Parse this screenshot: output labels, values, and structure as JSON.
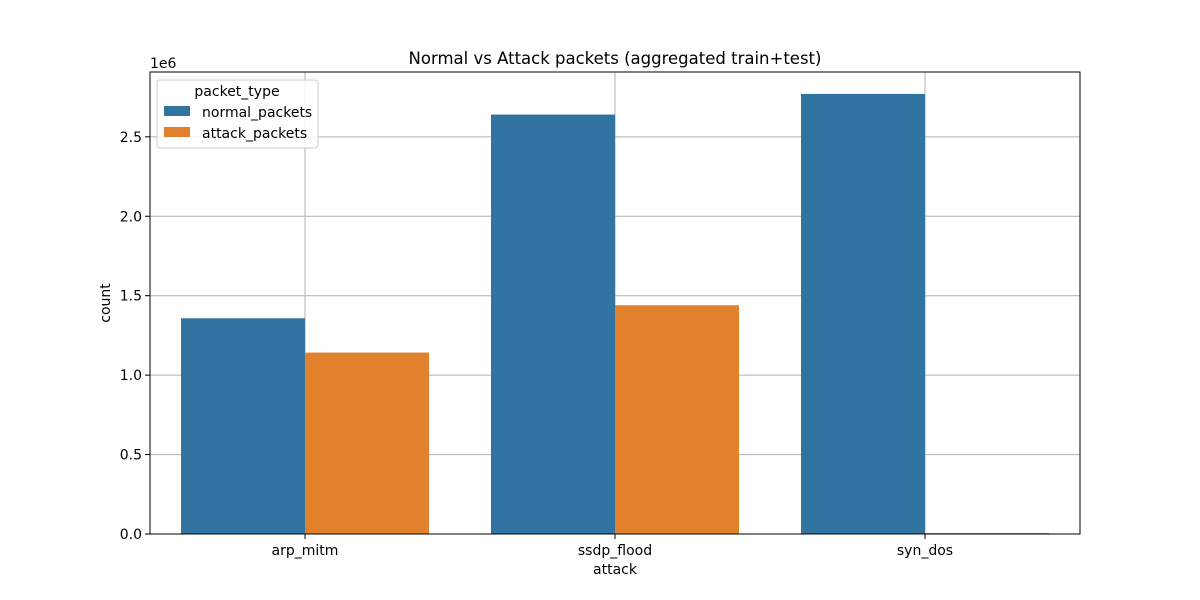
{
  "chart_data": {
    "type": "bar",
    "title": "Normal vs Attack packets (aggregated train+test)",
    "xlabel": "attack",
    "ylabel": "count",
    "y_offset_label": "1e6",
    "categories": [
      "arp_mitm",
      "ssdp_flood",
      "syn_dos"
    ],
    "series": [
      {
        "name": "normal_packets",
        "color": "#3274a1",
        "values": [
          1358000,
          2640000,
          2770000
        ]
      },
      {
        "name": "attack_packets",
        "color": "#e1812c",
        "values": [
          1142000,
          1440000,
          6000
        ]
      }
    ],
    "ylim": [
      0,
      2908000
    ],
    "y_ticks": [
      0,
      500000,
      1000000,
      1500000,
      2000000,
      2500000
    ],
    "y_tick_labels": [
      "0.0",
      "0.5",
      "1.0",
      "1.5",
      "2.0",
      "2.5"
    ],
    "grid": true,
    "legend": {
      "title": "packet_type",
      "placement": "top-left"
    }
  }
}
